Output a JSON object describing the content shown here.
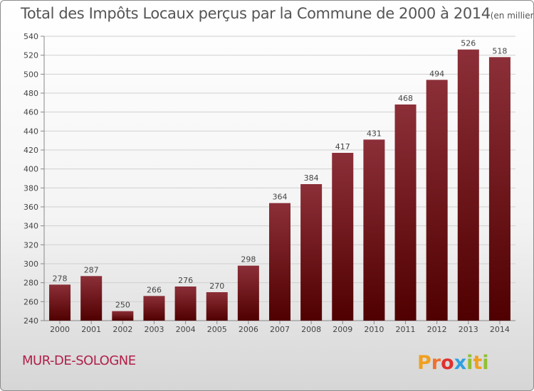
{
  "chart_data": {
    "type": "bar",
    "title": "Total des Impôts Locaux perçus par la Commune de 2000 à 2014",
    "unit_label": "(en milliers d'€)",
    "categories": [
      "2000",
      "2001",
      "2002",
      "2003",
      "2004",
      "2005",
      "2006",
      "2007",
      "2008",
      "2009",
      "2010",
      "2011",
      "2012",
      "2013",
      "2014"
    ],
    "values": [
      278,
      287,
      250,
      266,
      276,
      270,
      298,
      364,
      384,
      417,
      431,
      468,
      494,
      526,
      518
    ],
    "ylim": [
      240,
      540
    ],
    "yticks": [
      240,
      260,
      280,
      300,
      320,
      340,
      360,
      380,
      400,
      420,
      440,
      460,
      480,
      500,
      520,
      540
    ],
    "xlabel": "",
    "ylabel": "",
    "grid": true,
    "bar_color_top": "#8c2f38",
    "bar_color_bottom": "#500000"
  },
  "footer": {
    "commune": "MUR-DE-SOLOGNE",
    "logo_text": "Proxiti"
  },
  "colors": {
    "commune": "#b0204a",
    "logo_p": "#f0a020",
    "logo_r": "#f07030",
    "logo_o": "#e03030",
    "logo_x": "#30a0e0",
    "logo_i": "#90c030",
    "logo_t": "#f0a020",
    "logo_i2": "#90c030"
  }
}
